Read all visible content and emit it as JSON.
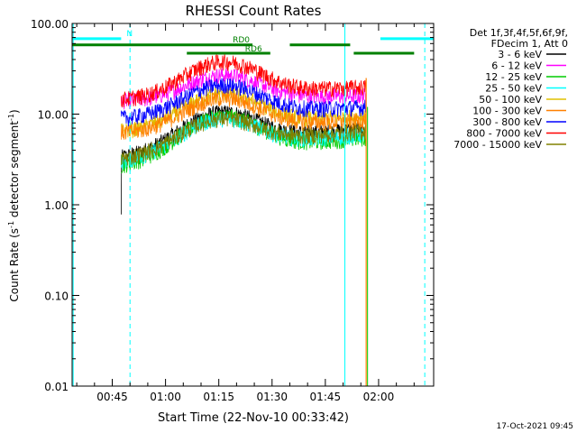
{
  "chart_data": {
    "type": "line",
    "title": "RHESSI Count Rates",
    "xlabel": "Start Time (22-Nov-10 00:33:42)",
    "ylabel": "Count Rate (s",
    "ylabel_sup": "-1",
    "ylabel_tail": " detector segment",
    "ylabel_sup2": "-1",
    "ylabel_close": ")",
    "x_ticks": [
      "00:45",
      "01:00",
      "01:15",
      "01:30",
      "01:45",
      "02:00"
    ],
    "x_tick_minutes": [
      45,
      60,
      75,
      90,
      105,
      120
    ],
    "xlim_minutes": [
      33.7,
      135.5
    ],
    "y_ticks": [
      "0.01",
      "0.10",
      "1.00",
      "10.00",
      "100.00"
    ],
    "y_tick_values": [
      0.01,
      0.1,
      1,
      10,
      100
    ],
    "ylim": [
      0.01,
      100
    ],
    "y_scale": "log",
    "legend_header": [
      "Det 1f,3f,4f,5f,6f,9f,",
      "FDecim 1, Att 0"
    ],
    "legend_placement": "right",
    "data_start_minute": 47.5,
    "gap_start_minute": 116.5,
    "second_segment_minute": 116.5,
    "series": [
      {
        "name": "3 - 6 keV",
        "color": "#000000",
        "start_level": 3.3,
        "peak_level": 10.5,
        "end_level": 7.0
      },
      {
        "name": "6 - 12 keV",
        "color": "#ff00ff",
        "start_level": 14.0,
        "peak_level": 27,
        "end_level": 16.0
      },
      {
        "name": "12 - 25 keV",
        "color": "#00cc00",
        "start_level": 2.7,
        "peak_level": 9.5,
        "end_level": 5.5
      },
      {
        "name": "25 - 50 keV",
        "color": "#00ffff",
        "start_level": 3.0,
        "peak_level": 9.0,
        "end_level": 6.0
      },
      {
        "name": "50 - 100 keV",
        "color": "#e0c000",
        "start_level": 6.5,
        "peak_level": 17,
        "end_level": 9.5
      },
      {
        "name": "100 - 300 keV",
        "color": "#ff8000",
        "start_level": 6.2,
        "peak_level": 15,
        "end_level": 8.5
      },
      {
        "name": "300 - 800 keV",
        "color": "#0000ff",
        "start_level": 9.0,
        "peak_level": 21,
        "end_level": 12.0
      },
      {
        "name": "800 - 7000 keV",
        "color": "#ff0000",
        "start_level": 14.5,
        "peak_level": 38,
        "end_level": 20.0
      },
      {
        "name": "7000 - 15000 keV",
        "color": "#808000",
        "start_level": 3.2,
        "peak_level": 9.0,
        "end_level": 6.5
      }
    ],
    "flags": [
      {
        "label": "N",
        "color": "#00ffff",
        "level": 68,
        "segments_minutes": [
          [
            33.7,
            47.5
          ],
          [
            120.5,
            135.5
          ]
        ]
      },
      {
        "label": "RD0",
        "color": "#008000",
        "level": 58,
        "segments_minutes": [
          [
            33.7,
            84.5
          ],
          [
            95.0,
            112.0
          ]
        ]
      },
      {
        "label": "RD6",
        "color": "#008000",
        "level": 47,
        "segments_minutes": [
          [
            66.0,
            89.5
          ],
          [
            113.0,
            130.0
          ]
        ]
      }
    ],
    "vertical_markers": [
      {
        "minute": 34.0,
        "color": "#00ffff",
        "style": "solid"
      },
      {
        "minute": 50.0,
        "color": "#00ffff",
        "style": "dashed"
      },
      {
        "minute": 110.5,
        "color": "#00ffff",
        "style": "solid"
      },
      {
        "minute": 133.0,
        "color": "#00ffff",
        "style": "dashed"
      }
    ],
    "grid": false
  },
  "footer": {
    "timestamp": "17-Oct-2021 09:45"
  }
}
